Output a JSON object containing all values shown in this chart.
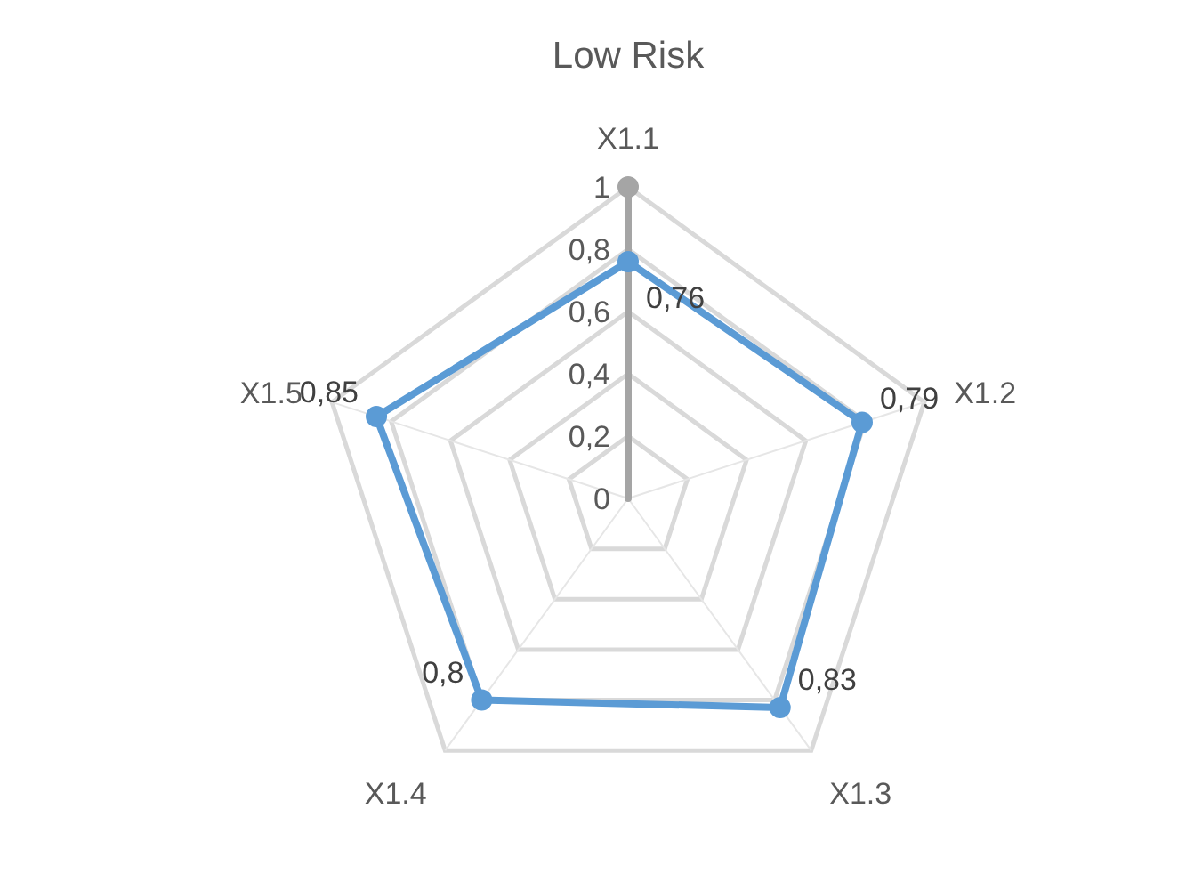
{
  "chart_data": {
    "type": "radar",
    "title": "Low Risk",
    "categories": [
      "X1.1",
      "X1.2",
      "X1.3",
      "X1.4",
      "X1.5"
    ],
    "series": [
      {
        "color": "#5b9bd5",
        "values": [
          0.76,
          0.79,
          0.83,
          0.8,
          0.85
        ],
        "value_labels": [
          "0,76",
          "0,79",
          "0,83",
          "0,8",
          "0,85"
        ]
      }
    ],
    "ylim": [
      0,
      1
    ],
    "yticks": [
      0,
      {
        "value": 0.2,
        "label": "0,2"
      },
      {
        "value": 0.4,
        "label": "0,4"
      },
      {
        "value": 0.6,
        "label": "0,6"
      },
      {
        "value": 0.8,
        "label": "0,8"
      },
      1
    ],
    "grid": true,
    "marker": "circle"
  }
}
